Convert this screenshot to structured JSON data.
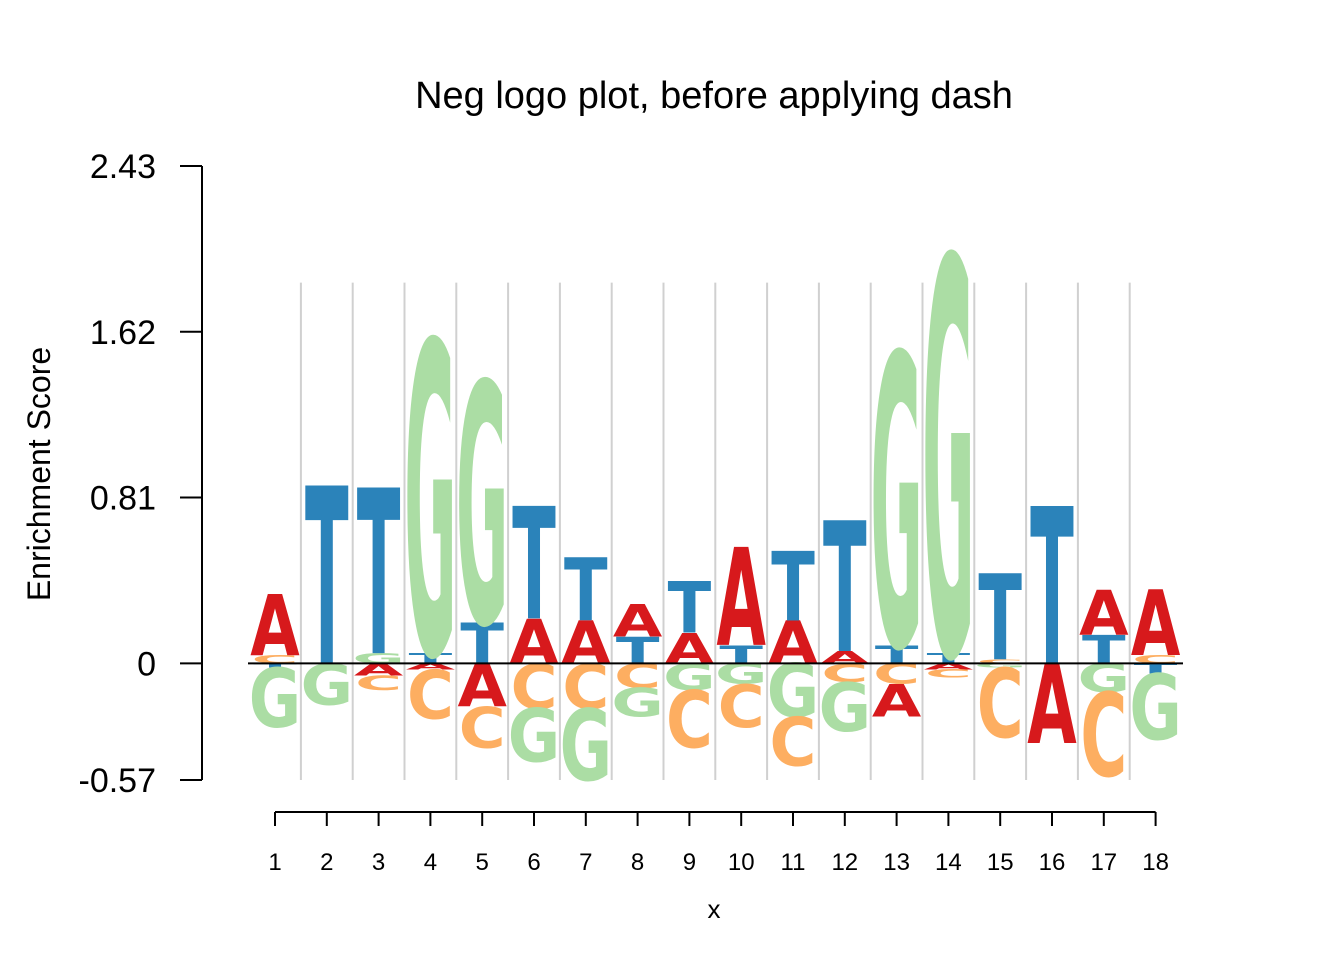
{
  "chart_data": {
    "type": "logo",
    "title": "Neg logo plot, before applying dash",
    "xlabel": "x",
    "ylabel": "Enrichment Score",
    "yticks": [
      "2.43",
      "1.62",
      "0.81",
      "0",
      "-0.57"
    ],
    "ytick_values": [
      2.43,
      1.62,
      0.81,
      0,
      -0.57
    ],
    "ylim": [
      -0.57,
      2.43
    ],
    "positions": [
      "1",
      "2",
      "3",
      "4",
      "5",
      "6",
      "7",
      "8",
      "9",
      "10",
      "11",
      "12",
      "13",
      "14",
      "15",
      "16",
      "17",
      "18"
    ],
    "colors": {
      "A": "#d7191c",
      "C": "#fdae61",
      "G": "#abdda4",
      "T": "#2b83ba"
    },
    "grid": true,
    "columns": [
      {
        "pos": "1",
        "pos_stack": [
          [
            "C",
            0.04
          ],
          [
            "A",
            0.3
          ]
        ],
        "neg_stack": [
          [
            "T",
            0.02
          ],
          [
            "G",
            0.29
          ]
        ]
      },
      {
        "pos": "2",
        "pos_stack": [
          [
            "T",
            0.87
          ]
        ],
        "neg_stack": [
          [
            "G",
            0.2
          ]
        ]
      },
      {
        "pos": "3",
        "pos_stack": [
          [
            "G",
            0.05
          ],
          [
            "T",
            0.81
          ]
        ],
        "neg_stack": [
          [
            "A",
            0.06
          ],
          [
            "C",
            0.07
          ]
        ]
      },
      {
        "pos": "4",
        "pos_stack": [
          [
            "T",
            0.05
          ],
          [
            "G",
            1.53
          ]
        ],
        "neg_stack": [
          [
            "A",
            0.03
          ],
          [
            "C",
            0.24
          ]
        ]
      },
      {
        "pos": "5",
        "pos_stack": [
          [
            "T",
            0.2
          ],
          [
            "G",
            1.18
          ]
        ],
        "neg_stack": [
          [
            "A",
            0.21
          ],
          [
            "C",
            0.2
          ]
        ]
      },
      {
        "pos": "6",
        "pos_stack": [
          [
            "A",
            0.22
          ],
          [
            "T",
            0.55
          ]
        ],
        "neg_stack": [
          [
            "C",
            0.22
          ],
          [
            "G",
            0.26
          ]
        ]
      },
      {
        "pos": "7",
        "pos_stack": [
          [
            "A",
            0.21
          ],
          [
            "T",
            0.31
          ]
        ],
        "neg_stack": [
          [
            "C",
            0.22
          ],
          [
            "G",
            0.35
          ]
        ]
      },
      {
        "pos": "8",
        "pos_stack": [
          [
            "T",
            0.13
          ],
          [
            "A",
            0.16
          ]
        ],
        "neg_stack": [
          [
            "C",
            0.12
          ],
          [
            "G",
            0.14
          ]
        ]
      },
      {
        "pos": "9",
        "pos_stack": [
          [
            "A",
            0.15
          ],
          [
            "T",
            0.25
          ]
        ],
        "neg_stack": [
          [
            "G",
            0.13
          ],
          [
            "C",
            0.28
          ]
        ]
      },
      {
        "pos": "10",
        "pos_stack": [
          [
            "T",
            0.09
          ],
          [
            "A",
            0.48
          ]
        ],
        "neg_stack": [
          [
            "G",
            0.1
          ],
          [
            "C",
            0.21
          ]
        ]
      },
      {
        "pos": "11",
        "pos_stack": [
          [
            "A",
            0.21
          ],
          [
            "T",
            0.34
          ]
        ],
        "neg_stack": [
          [
            "G",
            0.26
          ],
          [
            "C",
            0.24
          ]
        ]
      },
      {
        "pos": "12",
        "pos_stack": [
          [
            "A",
            0.06
          ],
          [
            "T",
            0.64
          ]
        ],
        "neg_stack": [
          [
            "C",
            0.09
          ],
          [
            "G",
            0.24
          ]
        ]
      },
      {
        "pos": "13",
        "pos_stack": [
          [
            "T",
            0.09
          ],
          [
            "G",
            1.43
          ]
        ],
        "neg_stack": [
          [
            "C",
            0.1
          ],
          [
            "A",
            0.16
          ]
        ]
      },
      {
        "pos": "14",
        "pos_stack": [
          [
            "T",
            0.05
          ],
          [
            "G",
            1.94
          ]
        ],
        "neg_stack": [
          [
            "A",
            0.03
          ],
          [
            "C",
            0.04
          ]
        ]
      },
      {
        "pos": "15",
        "pos_stack": [
          [
            "C",
            0.02
          ],
          [
            "T",
            0.42
          ]
        ],
        "neg_stack": [
          [
            "G",
            0.02
          ],
          [
            "C",
            0.34
          ]
        ]
      },
      {
        "pos": "16",
        "pos_stack": [
          [
            "T",
            0.77
          ]
        ],
        "neg_stack": [
          [
            "A",
            0.39
          ]
        ]
      },
      {
        "pos": "17",
        "pos_stack": [
          [
            "T",
            0.14
          ],
          [
            "A",
            0.22
          ]
        ],
        "neg_stack": [
          [
            "G",
            0.14
          ],
          [
            "C",
            0.41
          ]
        ]
      },
      {
        "pos": "18",
        "pos_stack": [
          [
            "C",
            0.04
          ],
          [
            "A",
            0.32
          ]
        ],
        "neg_stack": [
          [
            "T",
            0.05
          ],
          [
            "G",
            0.32
          ]
        ]
      }
    ]
  }
}
